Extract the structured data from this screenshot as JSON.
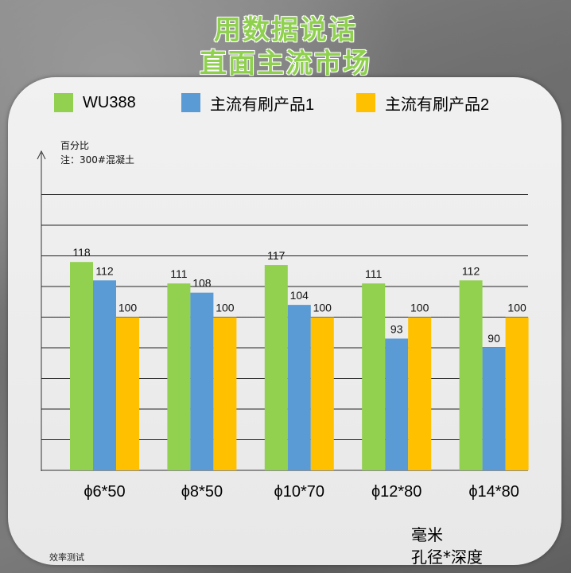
{
  "headline": {
    "line1": "用数据说话",
    "line2": "直面主流市场"
  },
  "chart_data": {
    "type": "bar",
    "ylabel": "百分比",
    "note": "注：300#混凝土",
    "xlabel_line1": "毫米",
    "xlabel_line2": "孔径*深度",
    "categories": [
      "ϕ6*50",
      "ϕ8*50",
      "ϕ10*70",
      "ϕ12*80",
      "ϕ14*80"
    ],
    "series": [
      {
        "name": "WU388",
        "color": "#92d050",
        "values": [
          118,
          111,
          117,
          111,
          112
        ]
      },
      {
        "name": "主流有刷产品1",
        "color": "#5b9bd5",
        "values": [
          112,
          108,
          104,
          93,
          90
        ]
      },
      {
        "name": "主流有刷产品2",
        "color": "#ffc000",
        "values": [
          100,
          100,
          100,
          100,
          100
        ]
      }
    ],
    "ylim": [
      50,
      140
    ],
    "grid": true,
    "legend_position": "top"
  },
  "footer": "效率测试"
}
